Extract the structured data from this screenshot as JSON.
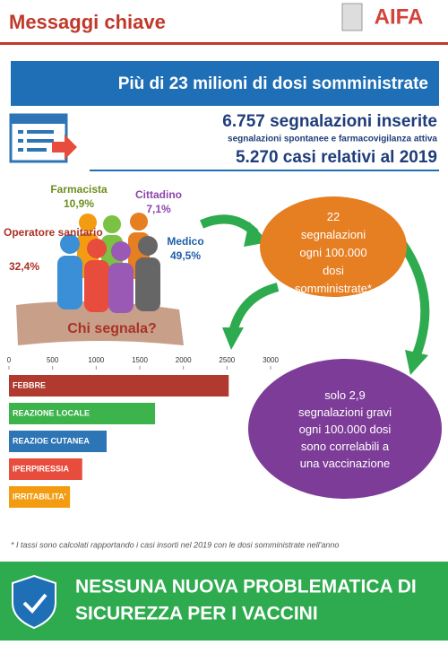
{
  "header": {
    "title": "Messaggi chiave",
    "logo": "AIFA"
  },
  "banner": "Più di 23 milioni di dosi somministrate",
  "stats": {
    "reports": "6.757 segnalazioni inserite",
    "reports_note": "segnalazioni spontanee e farmacovigilanza attiva",
    "cases": "5.270 casi relativi al 2019"
  },
  "reporters": {
    "question": "Chi segnala?",
    "groups": [
      {
        "name": "Farmacista",
        "share": "10,9%"
      },
      {
        "name": "Cittadino",
        "share": "7,1%"
      },
      {
        "name": "Operatore sanitario",
        "share": "32,4%"
      },
      {
        "name": "Medico",
        "share": "49,5%"
      }
    ]
  },
  "bubbles": [
    "22 segnalazioni ogni 100.000 dosi somministrate*",
    "solo 2,9 segnalazioni gravi ogni 100.000 dosi sono correlabili a una vaccinazione"
  ],
  "chart_data": {
    "type": "bar",
    "orientation": "horizontal",
    "categories": [
      "FEBBRE",
      "REAZIONE LOCALE",
      "REAZIOE CUTANEA",
      "IPERPIRESSIA",
      "IRRITABILITA'"
    ],
    "values": [
      2520,
      1675,
      1120,
      840,
      700
    ],
    "colors": [
      "#b03a2e",
      "#3cb44b",
      "#2e75b6",
      "#e74c3c",
      "#f39c12"
    ],
    "xlim": [
      0,
      3000
    ],
    "xticks": [
      0,
      500,
      1000,
      1500,
      2000,
      2500,
      3000
    ]
  },
  "footnote": "* I tassi sono calcolati rapportando i casi insorti nel 2019 con le dosi somministrate nell'anno",
  "conclusion": [
    "NESSUNA NUOVA PROBLEMATICA DI",
    "SICUREZZA PER I VACCINI"
  ]
}
